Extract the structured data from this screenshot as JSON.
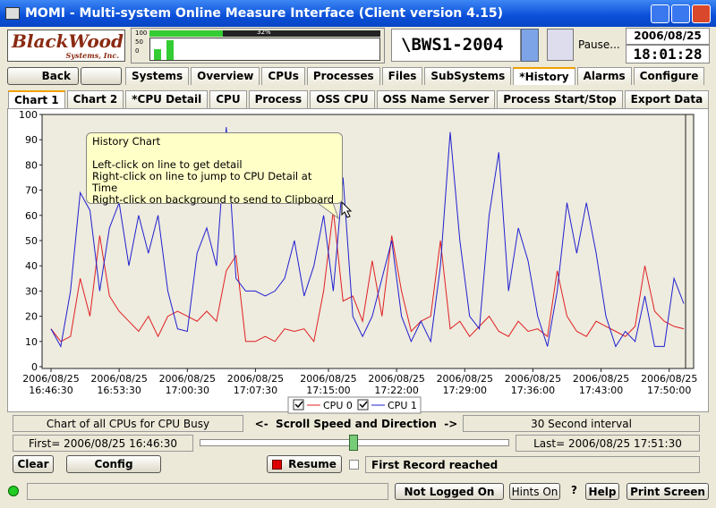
{
  "window": {
    "title": "MOMI - Multi-system Online Measure Interface (Client version 4.15)"
  },
  "header": {
    "logo_main": "BlackWood",
    "logo_sub": "Systems, Inc.",
    "meter_percent": "32%",
    "meter_scale": [
      "100",
      "50",
      "0"
    ],
    "system": "\\BWS1-2004",
    "pause": "Pause...",
    "date": "2006/08/25",
    "time": "18:01:28"
  },
  "nav": {
    "back": "Back",
    "tabs": [
      "Systems",
      "Overview",
      "CPUs",
      "Processes",
      "Files",
      "SubSystems",
      "*History",
      "Alarms",
      "Configure"
    ]
  },
  "subtabs": [
    "Chart 1",
    "Chart 2",
    "*CPU Detail",
    "CPU",
    "Process",
    "OSS CPU",
    "OSS Name Server",
    "Process Start/Stop",
    "Export Data"
  ],
  "chart_data": {
    "type": "line",
    "xlim": [
      "16:46:30",
      "17:51:30"
    ],
    "xticks": [
      {
        "value": "16:46:30",
        "label": "2006/08/25\n16:46:30"
      },
      {
        "value": "16:53:30",
        "label": "2006/08/25\n16:53:30"
      },
      {
        "value": "17:00:30",
        "label": "2006/08/25\n17:00:30"
      },
      {
        "value": "17:07:30",
        "label": "2006/08/25\n17:07:30"
      },
      {
        "value": "17:15:00",
        "label": "2006/08/25\n17:15:00"
      },
      {
        "value": "17:22:00",
        "label": "2006/08/25\n17:22:00"
      },
      {
        "value": "17:29:00",
        "label": "2006/08/25\n17:29:00"
      },
      {
        "value": "17:36:00",
        "label": "2006/08/25\n17:36:00"
      },
      {
        "value": "17:43:00",
        "label": "2006/08/25\n17:43:00"
      },
      {
        "value": "17:50:00",
        "label": "2006/08/25\n17:50:00"
      }
    ],
    "ylim": [
      0,
      100
    ],
    "yticks": [
      0,
      10,
      20,
      30,
      40,
      50,
      60,
      70,
      80,
      90,
      100
    ],
    "x": [
      "16:46:30",
      "16:47:30",
      "16:48:30",
      "16:49:30",
      "16:50:30",
      "16:51:30",
      "16:52:30",
      "16:53:30",
      "16:54:30",
      "16:55:30",
      "16:56:30",
      "16:57:30",
      "16:58:30",
      "16:59:30",
      "17:00:30",
      "17:01:30",
      "17:02:30",
      "17:03:30",
      "17:04:30",
      "17:05:30",
      "17:06:30",
      "17:07:30",
      "17:08:30",
      "17:09:30",
      "17:10:30",
      "17:11:30",
      "17:12:30",
      "17:13:30",
      "17:14:30",
      "17:15:30",
      "17:16:30",
      "17:17:30",
      "17:18:30",
      "17:19:30",
      "17:20:30",
      "17:21:30",
      "17:22:30",
      "17:23:30",
      "17:24:30",
      "17:25:30",
      "17:26:30",
      "17:27:30",
      "17:28:30",
      "17:29:30",
      "17:30:30",
      "17:31:30",
      "17:32:30",
      "17:33:30",
      "17:34:30",
      "17:35:30",
      "17:36:30",
      "17:37:30",
      "17:38:30",
      "17:39:30",
      "17:40:30",
      "17:41:30",
      "17:42:30",
      "17:43:30",
      "17:44:30",
      "17:45:30",
      "17:46:30",
      "17:47:30",
      "17:48:30",
      "17:49:30",
      "17:50:30",
      "17:51:30"
    ],
    "series": [
      {
        "name": "CPU 0",
        "color": "#e02020",
        "values": [
          15,
          10,
          12,
          35,
          20,
          52,
          28,
          22,
          18,
          14,
          20,
          12,
          20,
          22,
          20,
          18,
          22,
          18,
          38,
          44,
          10,
          10,
          12,
          10,
          15,
          14,
          15,
          10,
          30,
          62,
          26,
          28,
          18,
          42,
          20,
          52,
          30,
          14,
          18,
          20,
          50,
          15,
          18,
          12,
          16,
          20,
          14,
          12,
          18,
          14,
          15,
          12,
          38,
          20,
          14,
          12,
          18,
          16,
          14,
          12,
          16,
          40,
          22,
          18,
          16,
          15
        ]
      },
      {
        "name": "CPU 1",
        "color": "#2020d0",
        "values": [
          15,
          8,
          30,
          69,
          62,
          30,
          55,
          65,
          40,
          60,
          45,
          60,
          30,
          15,
          14,
          45,
          55,
          40,
          95,
          35,
          30,
          30,
          28,
          30,
          35,
          50,
          28,
          40,
          60,
          30,
          75,
          20,
          12,
          20,
          35,
          50,
          20,
          10,
          18,
          10,
          40,
          93,
          50,
          20,
          15,
          60,
          85,
          30,
          55,
          42,
          20,
          8,
          30,
          65,
          45,
          65,
          45,
          20,
          8,
          14,
          10,
          28,
          8,
          8,
          35,
          25
        ]
      }
    ],
    "legend_position": "bottom"
  },
  "tooltip": {
    "title": "History Chart",
    "lines": [
      "Left-click on line to get detail",
      "Right-click on line to jump to CPU Detail at Time",
      "Right-click on background to send to Clipboard"
    ]
  },
  "controls": {
    "description": "Chart of all CPUs for CPU Busy",
    "scroll": "<-  Scroll Speed and Direction  ->",
    "interval": "30 Second interval",
    "first": "First= 2006/08/25 16:46:30",
    "last": "Last= 2006/08/25 17:51:30",
    "clear": "Clear",
    "config": "Config",
    "resume": "Resume",
    "first_reached": "First Record reached"
  },
  "status": {
    "login": "Not Logged On",
    "hints": "Hints On",
    "question": "?",
    "help": "Help",
    "print": "Print Screen"
  }
}
